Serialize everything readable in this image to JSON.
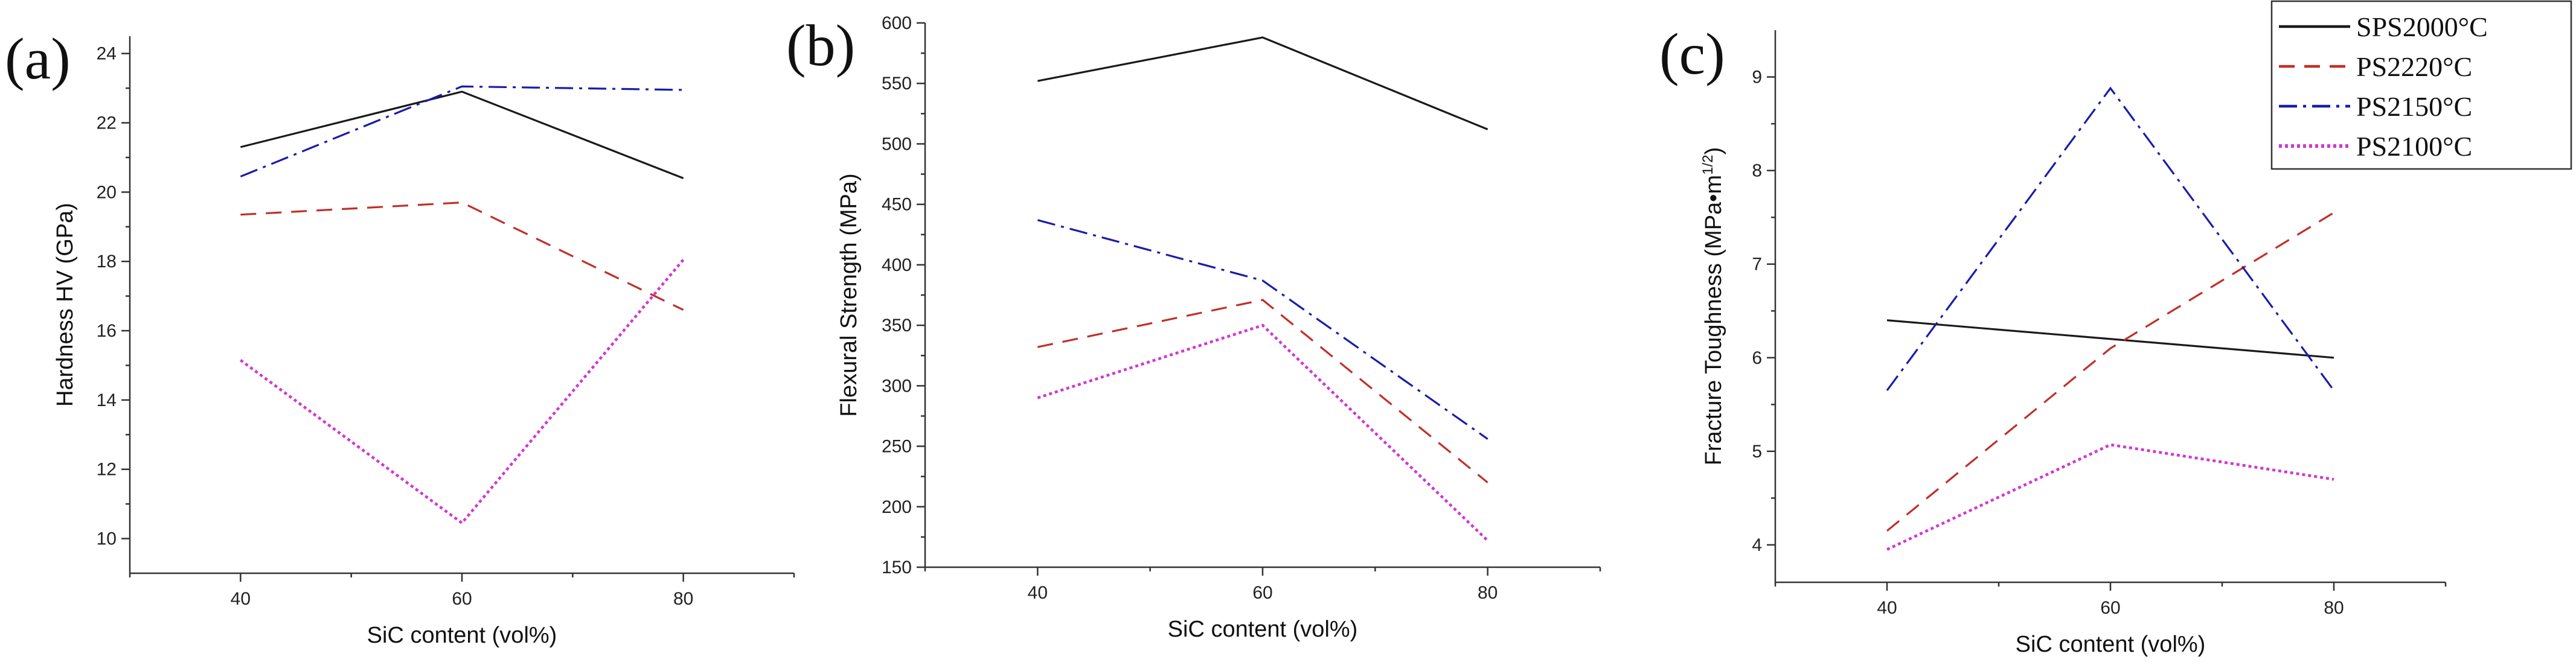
{
  "colors": {
    "SPS2000°C": "#1a1a1a",
    "PS2220°C": "#c0302a",
    "PS2150°C": "#1c1ca8",
    "PS2100°C": "#d038d0"
  },
  "legend": [
    "SPS2000°C",
    "PS2220°C",
    "PS2150°C",
    "PS2100°C"
  ],
  "chart_data": [
    {
      "type": "line",
      "panel_label": "(a)",
      "xlabel": "SiC content (vol%)",
      "ylabel": "Hardness HV (GPa)",
      "x": [
        40,
        60,
        80
      ],
      "x_ticks": [
        "40",
        "60",
        "80"
      ],
      "xlim": [
        30,
        90
      ],
      "ylim": [
        9,
        24.5
      ],
      "y_ticks": [
        10,
        12,
        14,
        16,
        18,
        20,
        22,
        24
      ],
      "y_tick_labels": [
        "10",
        "12",
        "14",
        "16",
        "18",
        "20",
        "22",
        "24"
      ],
      "series": [
        {
          "name": "SPS2000°C",
          "values": [
            21.3,
            22.9,
            20.4
          ]
        },
        {
          "name": "PS2220°C",
          "values": [
            19.35,
            19.7,
            16.6
          ]
        },
        {
          "name": "PS2150°C",
          "values": [
            20.45,
            23.05,
            22.95
          ]
        },
        {
          "name": "PS2100°C",
          "values": [
            15.15,
            10.45,
            18.05
          ]
        }
      ]
    },
    {
      "type": "line",
      "panel_label": "(b)",
      "xlabel": "SiC content (vol%)",
      "ylabel": "Flexural Strength (MPa)",
      "x": [
        40,
        60,
        80
      ],
      "x_ticks": [
        "40",
        "60",
        "80"
      ],
      "xlim": [
        30,
        90
      ],
      "ylim": [
        150,
        600
      ],
      "y_ticks": [
        150,
        200,
        250,
        300,
        350,
        400,
        450,
        500,
        550,
        600
      ],
      "y_tick_labels": [
        "150",
        "200",
        "250",
        "300",
        "350",
        "400",
        "450",
        "500",
        "550",
        "600"
      ],
      "series": [
        {
          "name": "SPS2000°C",
          "values": [
            552,
            588,
            512
          ]
        },
        {
          "name": "PS2220°C",
          "values": [
            332,
            371,
            220
          ]
        },
        {
          "name": "PS2150°C",
          "values": [
            437,
            387,
            256
          ]
        },
        {
          "name": "PS2100°C",
          "values": [
            290,
            350,
            172
          ]
        }
      ]
    },
    {
      "type": "line",
      "panel_label": "(c)",
      "xlabel": "SiC content (vol%)",
      "ylabel": "Fracture Toughness (MPa•m",
      "ylabel_sup": "1/2",
      "ylabel_end": ")",
      "x": [
        40,
        60,
        80
      ],
      "x_ticks": [
        "40",
        "60",
        "80"
      ],
      "xlim": [
        30,
        90
      ],
      "ylim": [
        3.6,
        9.5
      ],
      "y_ticks": [
        4,
        5,
        6,
        7,
        8,
        9
      ],
      "y_tick_labels": [
        "4",
        "5",
        "6",
        "7",
        "8",
        "9"
      ],
      "series": [
        {
          "name": "SPS2000°C",
          "values": [
            6.4,
            6.2,
            6.0
          ]
        },
        {
          "name": "PS2220°C",
          "values": [
            4.15,
            6.1,
            7.55
          ]
        },
        {
          "name": "PS2150°C",
          "values": [
            5.65,
            8.88,
            5.65
          ]
        },
        {
          "name": "PS2100°C",
          "values": [
            3.95,
            5.07,
            4.7
          ]
        }
      ]
    }
  ]
}
